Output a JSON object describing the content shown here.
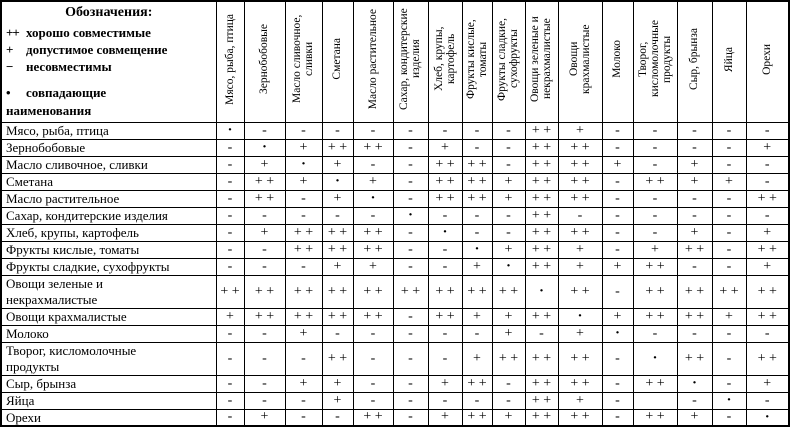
{
  "legend": {
    "title": "Обозначения:",
    "items": [
      {
        "symbol": "++",
        "label": "хорошо совместимые"
      },
      {
        "symbol": "+",
        "label": "допустимое совмещение"
      },
      {
        "symbol": "−",
        "label": "несовместимы"
      },
      {
        "symbol": "•",
        "label": "совпадающие\nнаименования"
      }
    ]
  },
  "table": {
    "products": [
      [
        "Мясо, рыба, птица"
      ],
      [
        "Зернобобовые"
      ],
      [
        "Масло сливочное, сливки"
      ],
      [
        "Сметана"
      ],
      [
        "Масло растительное"
      ],
      [
        "Сахар, кондитерские изделия"
      ],
      [
        "Хлеб, крупы, картофель"
      ],
      [
        "Фрукты кислые, томаты"
      ],
      [
        "Фрукты сладкие, сухофрукты"
      ],
      [
        "Овощи зеленые и",
        "некрахмалистые"
      ],
      [
        "Овощи крахмалистые"
      ],
      [
        "Молоко"
      ],
      [
        "Творог, кисломолочные",
        "продукты"
      ],
      [
        "Сыр, брынза"
      ],
      [
        "Яйца"
      ],
      [
        "Орехи"
      ]
    ],
    "matrix": [
      [
        ".",
        "-",
        "-",
        "-",
        "-",
        "-",
        "-",
        "-",
        "-",
        "++",
        "+",
        "-",
        "-",
        "-",
        "-",
        "-"
      ],
      [
        "-",
        ".",
        "+",
        "++",
        "++",
        "-",
        "+",
        "-",
        "-",
        "++",
        "++",
        "-",
        "-",
        "-",
        "-",
        "+"
      ],
      [
        "-",
        "+",
        ".",
        "+",
        "-",
        "-",
        "++",
        "++",
        "-",
        "++",
        "++",
        "+",
        "-",
        "+",
        "-",
        "-"
      ],
      [
        "-",
        "++",
        "+",
        ".",
        "+",
        "-",
        "++",
        "++",
        "+",
        "++",
        "++",
        "-",
        "++",
        "+",
        "+",
        "-"
      ],
      [
        "-",
        "++",
        "-",
        "+",
        ".",
        "-",
        "++",
        "++",
        "+",
        "++",
        "++",
        "-",
        "-",
        "-",
        "-",
        "++"
      ],
      [
        "-",
        "-",
        "-",
        "-",
        "-",
        ".",
        "-",
        "-",
        "-",
        "++",
        "-",
        "-",
        "-",
        "-",
        "-",
        "-"
      ],
      [
        "-",
        "+",
        "++",
        "++",
        "++",
        "-",
        ".",
        "-",
        "-",
        "++",
        "++",
        "-",
        "-",
        "+",
        "-",
        "+"
      ],
      [
        "-",
        "-",
        "++",
        "++",
        "++",
        "-",
        "-",
        ".",
        "+",
        "++",
        "+",
        "-",
        "+",
        "++",
        "-",
        "++"
      ],
      [
        "-",
        "-",
        "-",
        "+",
        "+",
        "-",
        "-",
        "+",
        ".",
        "++",
        "+",
        "+",
        "++",
        "-",
        "-",
        "+"
      ],
      [
        "++",
        "++",
        "++",
        "++",
        "++",
        "++",
        "++",
        "++",
        "++",
        ".",
        "++",
        "-",
        "++",
        "++",
        "++",
        "++"
      ],
      [
        "+",
        "++",
        "++",
        "++",
        "++",
        "-",
        "++",
        "+",
        "+",
        "++",
        ".",
        "+",
        "++",
        "++",
        "+",
        "++"
      ],
      [
        "-",
        "-",
        "+",
        "-",
        "-",
        "-",
        "-",
        "-",
        "+",
        "-",
        "+",
        ".",
        "-",
        "-",
        "-",
        "-"
      ],
      [
        "-",
        "-",
        "-",
        "++",
        "-",
        "-",
        "-",
        "+",
        "++",
        "++",
        "++",
        "-",
        ".",
        "++",
        "-",
        "++"
      ],
      [
        "-",
        "-",
        "+",
        "+",
        "-",
        "-",
        "+",
        "++",
        "-",
        "++",
        "++",
        "-",
        "++",
        ".",
        "-",
        "+"
      ],
      [
        "-",
        "-",
        "-",
        "+",
        "-",
        "-",
        "-",
        "-",
        "-",
        "++",
        "+",
        "-",
        "",
        "-",
        ".",
        "-"
      ],
      [
        "-",
        "+",
        "-",
        "-",
        "++",
        "-",
        "+",
        "++",
        "+",
        "++",
        "++",
        "-",
        "++",
        "+",
        "-",
        "."
      ]
    ],
    "symbol_display": {
      "++": "+ +",
      "+": "+",
      "-": "-",
      ".": "·",
      "": ""
    }
  },
  "colors": {
    "border": "#000000",
    "background": "#ffffff",
    "text": "#000000"
  }
}
